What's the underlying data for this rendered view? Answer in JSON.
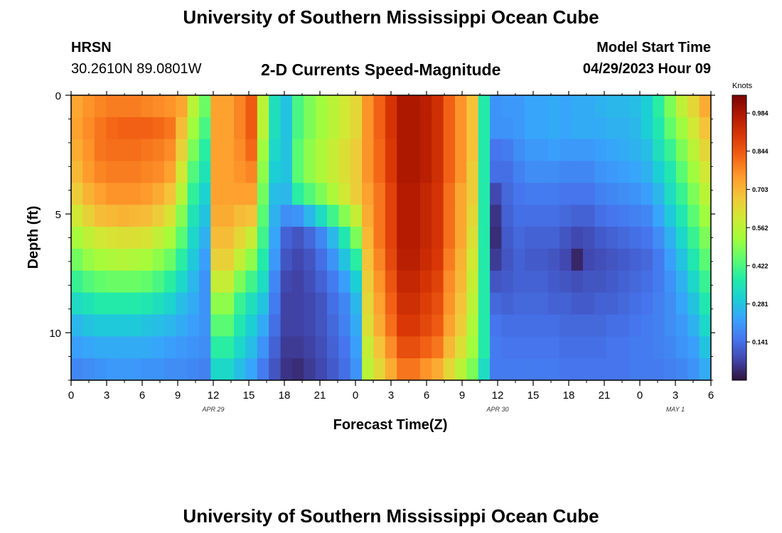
{
  "page": {
    "title": "University of Southern Mississippi Ocean Cube",
    "bottom_title": "University of Southern Mississippi Ocean Cube",
    "station": "HRSN",
    "coords": "30.2610N  89.0801W",
    "subtitle": "2-D Currents Speed-Magnitude",
    "model_start_label": "Model Start Time",
    "model_start_value": "04/29/2023 Hour 09"
  },
  "colors": {
    "colormap": [
      "#30123b",
      "#4145ab",
      "#4675ed",
      "#39a2fc",
      "#1bcfd4",
      "#24eca6",
      "#61fc6c",
      "#a4fc3b",
      "#d1e834",
      "#f3c63a",
      "#fe9b2d",
      "#f36315",
      "#d93806",
      "#b11901",
      "#7a0403"
    ]
  },
  "chart_data": {
    "type": "heatmap",
    "title": "2-D Currents Speed-Magnitude",
    "xlabel": "Forecast Time(Z)",
    "ylabel": "Depth (ft)",
    "x_ticks": [
      "0",
      "3",
      "6",
      "9",
      "12",
      "15",
      "18",
      "21",
      "0",
      "3",
      "6",
      "9",
      "12",
      "15",
      "18",
      "21",
      "0",
      "3",
      "6"
    ],
    "x_hours": [
      0,
      54
    ],
    "y_ticks": [
      "0",
      "5",
      "10"
    ],
    "y_tick_values": [
      0,
      5,
      10
    ],
    "ylim": [
      0,
      12
    ],
    "date_labels": [
      {
        "label": "APR 29",
        "hour": 12
      },
      {
        "label": "APR 30",
        "hour": 36
      },
      {
        "label": "MAY 1",
        "hour": 51
      }
    ],
    "colorbar": {
      "label": "Knots",
      "ticks": [
        "0.984",
        "0.844",
        "0.703",
        "0.562",
        "0.422",
        "0.281",
        "0.141"
      ],
      "tick_values": [
        0.984,
        0.844,
        0.703,
        0.562,
        0.422,
        0.281,
        0.141
      ],
      "range": [
        0,
        1.05
      ]
    },
    "depth_levels": [
      0,
      1,
      2,
      3,
      4,
      5,
      6,
      7,
      8,
      9,
      10,
      11,
      12
    ],
    "hours": [
      0,
      1,
      2,
      3,
      4,
      5,
      6,
      7,
      8,
      9,
      10,
      11,
      12,
      13,
      14,
      15,
      16,
      17,
      18,
      19,
      20,
      21,
      22,
      23,
      24,
      25,
      26,
      27,
      28,
      29,
      30,
      31,
      32,
      33,
      34,
      35,
      36,
      37,
      38,
      39,
      40,
      41,
      42,
      43,
      44,
      45,
      46,
      47,
      48,
      49,
      50,
      51,
      52,
      53,
      54
    ],
    "values": [
      [
        0.73,
        0.76,
        0.78,
        0.79,
        0.79,
        0.79,
        0.78,
        0.77,
        0.76,
        0.73,
        0.56,
        0.46,
        0.74,
        0.74,
        0.78,
        0.84,
        0.56,
        0.34,
        0.28,
        0.42,
        0.48,
        0.52,
        0.56,
        0.6,
        0.64,
        0.76,
        0.83,
        0.91,
        0.98,
        0.98,
        0.96,
        0.92,
        0.83,
        0.76,
        0.68,
        0.37,
        0.2,
        0.21,
        0.21,
        0.23,
        0.23,
        0.24,
        0.23,
        0.24,
        0.24,
        0.25,
        0.26,
        0.26,
        0.27,
        0.3,
        0.38,
        0.48,
        0.57,
        0.64,
        0.72
      ],
      [
        0.74,
        0.77,
        0.8,
        0.82,
        0.83,
        0.83,
        0.83,
        0.82,
        0.8,
        0.69,
        0.52,
        0.42,
        0.74,
        0.74,
        0.78,
        0.84,
        0.56,
        0.34,
        0.28,
        0.42,
        0.48,
        0.52,
        0.56,
        0.6,
        0.64,
        0.76,
        0.83,
        0.91,
        0.98,
        0.98,
        0.96,
        0.92,
        0.83,
        0.76,
        0.68,
        0.37,
        0.2,
        0.2,
        0.21,
        0.23,
        0.23,
        0.24,
        0.23,
        0.24,
        0.24,
        0.24,
        0.25,
        0.25,
        0.26,
        0.3,
        0.36,
        0.45,
        0.52,
        0.6,
        0.68
      ],
      [
        0.72,
        0.76,
        0.8,
        0.81,
        0.81,
        0.81,
        0.8,
        0.79,
        0.77,
        0.65,
        0.48,
        0.38,
        0.74,
        0.74,
        0.77,
        0.82,
        0.52,
        0.32,
        0.28,
        0.44,
        0.5,
        0.54,
        0.58,
        0.62,
        0.66,
        0.76,
        0.82,
        0.9,
        0.98,
        0.98,
        0.96,
        0.92,
        0.83,
        0.76,
        0.68,
        0.37,
        0.15,
        0.16,
        0.19,
        0.21,
        0.21,
        0.22,
        0.21,
        0.21,
        0.21,
        0.22,
        0.23,
        0.24,
        0.25,
        0.27,
        0.34,
        0.4,
        0.48,
        0.56,
        0.64
      ],
      [
        0.7,
        0.75,
        0.78,
        0.79,
        0.79,
        0.79,
        0.78,
        0.77,
        0.74,
        0.6,
        0.43,
        0.35,
        0.74,
        0.74,
        0.76,
        0.78,
        0.5,
        0.3,
        0.28,
        0.44,
        0.5,
        0.54,
        0.58,
        0.62,
        0.66,
        0.76,
        0.82,
        0.9,
        0.98,
        0.98,
        0.96,
        0.92,
        0.83,
        0.76,
        0.66,
        0.37,
        0.14,
        0.14,
        0.17,
        0.19,
        0.19,
        0.19,
        0.18,
        0.18,
        0.18,
        0.2,
        0.21,
        0.22,
        0.23,
        0.25,
        0.3,
        0.36,
        0.44,
        0.52,
        0.6
      ],
      [
        0.66,
        0.71,
        0.74,
        0.76,
        0.76,
        0.76,
        0.75,
        0.72,
        0.68,
        0.55,
        0.39,
        0.31,
        0.74,
        0.74,
        0.74,
        0.74,
        0.47,
        0.27,
        0.26,
        0.38,
        0.43,
        0.48,
        0.54,
        0.6,
        0.66,
        0.74,
        0.8,
        0.88,
        0.97,
        0.97,
        0.94,
        0.91,
        0.81,
        0.73,
        0.66,
        0.37,
        0.08,
        0.13,
        0.15,
        0.16,
        0.16,
        0.16,
        0.15,
        0.15,
        0.15,
        0.17,
        0.18,
        0.19,
        0.2,
        0.22,
        0.26,
        0.33,
        0.4,
        0.48,
        0.56
      ],
      [
        0.6,
        0.65,
        0.69,
        0.7,
        0.71,
        0.7,
        0.69,
        0.66,
        0.61,
        0.49,
        0.35,
        0.28,
        0.72,
        0.72,
        0.69,
        0.68,
        0.44,
        0.25,
        0.19,
        0.2,
        0.26,
        0.33,
        0.41,
        0.49,
        0.58,
        0.72,
        0.8,
        0.88,
        0.97,
        0.97,
        0.94,
        0.91,
        0.81,
        0.73,
        0.64,
        0.37,
        0.05,
        0.12,
        0.14,
        0.14,
        0.14,
        0.14,
        0.13,
        0.12,
        0.12,
        0.14,
        0.15,
        0.16,
        0.17,
        0.18,
        0.23,
        0.29,
        0.36,
        0.44,
        0.52
      ],
      [
        0.53,
        0.57,
        0.6,
        0.61,
        0.62,
        0.62,
        0.61,
        0.57,
        0.53,
        0.44,
        0.32,
        0.25,
        0.69,
        0.69,
        0.64,
        0.58,
        0.41,
        0.23,
        0.12,
        0.1,
        0.13,
        0.18,
        0.26,
        0.36,
        0.48,
        0.7,
        0.8,
        0.88,
        0.97,
        0.97,
        0.94,
        0.91,
        0.81,
        0.73,
        0.62,
        0.37,
        0.04,
        0.11,
        0.13,
        0.12,
        0.12,
        0.12,
        0.1,
        0.08,
        0.09,
        0.11,
        0.12,
        0.13,
        0.14,
        0.15,
        0.19,
        0.25,
        0.32,
        0.4,
        0.48
      ],
      [
        0.47,
        0.51,
        0.53,
        0.54,
        0.55,
        0.54,
        0.53,
        0.5,
        0.46,
        0.38,
        0.29,
        0.22,
        0.65,
        0.65,
        0.57,
        0.5,
        0.37,
        0.21,
        0.1,
        0.08,
        0.1,
        0.14,
        0.2,
        0.28,
        0.38,
        0.68,
        0.78,
        0.87,
        0.96,
        0.96,
        0.93,
        0.9,
        0.79,
        0.71,
        0.6,
        0.37,
        0.06,
        0.1,
        0.12,
        0.11,
        0.11,
        0.1,
        0.08,
        0.03,
        0.08,
        0.09,
        0.1,
        0.11,
        0.12,
        0.13,
        0.16,
        0.22,
        0.28,
        0.36,
        0.44
      ],
      [
        0.4,
        0.43,
        0.45,
        0.46,
        0.46,
        0.46,
        0.45,
        0.42,
        0.38,
        0.32,
        0.26,
        0.2,
        0.58,
        0.58,
        0.48,
        0.41,
        0.33,
        0.18,
        0.08,
        0.07,
        0.09,
        0.12,
        0.16,
        0.22,
        0.3,
        0.66,
        0.76,
        0.85,
        0.94,
        0.94,
        0.91,
        0.88,
        0.77,
        0.7,
        0.58,
        0.37,
        0.1,
        0.11,
        0.12,
        0.12,
        0.12,
        0.11,
        0.1,
        0.09,
        0.1,
        0.1,
        0.11,
        0.12,
        0.13,
        0.14,
        0.16,
        0.2,
        0.25,
        0.32,
        0.4
      ],
      [
        0.33,
        0.35,
        0.37,
        0.37,
        0.37,
        0.37,
        0.36,
        0.34,
        0.31,
        0.27,
        0.24,
        0.2,
        0.5,
        0.5,
        0.4,
        0.34,
        0.28,
        0.16,
        0.07,
        0.07,
        0.08,
        0.1,
        0.14,
        0.18,
        0.26,
        0.64,
        0.74,
        0.83,
        0.92,
        0.92,
        0.89,
        0.86,
        0.76,
        0.68,
        0.56,
        0.37,
        0.13,
        0.12,
        0.13,
        0.13,
        0.13,
        0.12,
        0.12,
        0.11,
        0.11,
        0.12,
        0.12,
        0.13,
        0.14,
        0.15,
        0.17,
        0.19,
        0.23,
        0.28,
        0.36
      ],
      [
        0.26,
        0.28,
        0.29,
        0.29,
        0.29,
        0.29,
        0.28,
        0.27,
        0.26,
        0.24,
        0.22,
        0.2,
        0.44,
        0.44,
        0.36,
        0.3,
        0.24,
        0.14,
        0.07,
        0.07,
        0.08,
        0.1,
        0.13,
        0.17,
        0.24,
        0.62,
        0.72,
        0.81,
        0.9,
        0.9,
        0.87,
        0.84,
        0.74,
        0.66,
        0.54,
        0.37,
        0.15,
        0.14,
        0.14,
        0.14,
        0.14,
        0.14,
        0.13,
        0.13,
        0.13,
        0.13,
        0.14,
        0.14,
        0.15,
        0.16,
        0.17,
        0.19,
        0.21,
        0.25,
        0.32
      ],
      [
        0.22,
        0.23,
        0.24,
        0.24,
        0.24,
        0.24,
        0.24,
        0.23,
        0.22,
        0.21,
        0.2,
        0.19,
        0.38,
        0.38,
        0.32,
        0.27,
        0.2,
        0.12,
        0.06,
        0.06,
        0.07,
        0.09,
        0.12,
        0.15,
        0.22,
        0.58,
        0.68,
        0.77,
        0.86,
        0.86,
        0.83,
        0.8,
        0.7,
        0.62,
        0.52,
        0.37,
        0.16,
        0.15,
        0.15,
        0.15,
        0.15,
        0.15,
        0.14,
        0.14,
        0.14,
        0.14,
        0.15,
        0.15,
        0.16,
        0.16,
        0.17,
        0.18,
        0.2,
        0.22,
        0.28
      ],
      [
        0.18,
        0.19,
        0.2,
        0.21,
        0.21,
        0.21,
        0.2,
        0.2,
        0.19,
        0.19,
        0.18,
        0.17,
        0.32,
        0.32,
        0.27,
        0.23,
        0.16,
        0.1,
        0.05,
        0.04,
        0.06,
        0.08,
        0.11,
        0.14,
        0.2,
        0.56,
        0.64,
        0.72,
        0.8,
        0.8,
        0.76,
        0.72,
        0.64,
        0.56,
        0.48,
        0.33,
        0.16,
        0.16,
        0.16,
        0.16,
        0.16,
        0.16,
        0.15,
        0.15,
        0.15,
        0.15,
        0.15,
        0.15,
        0.16,
        0.16,
        0.16,
        0.17,
        0.18,
        0.2,
        0.24
      ]
    ]
  }
}
